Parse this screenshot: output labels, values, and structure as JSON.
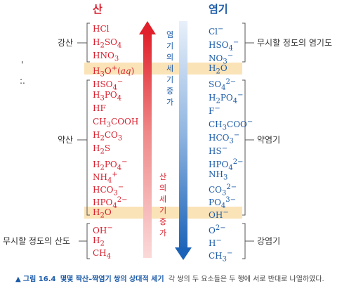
{
  "headers": {
    "acid": "산",
    "base": "염기"
  },
  "acids": [
    "HCl",
    "H2SO4",
    "HNO3",
    "H3O+(aq)",
    "HSO4−",
    "H3PO4",
    "HF",
    "CH3COOH",
    "H2CO3",
    "H2S",
    "H2PO4−",
    "NH4+",
    "HCO3−",
    "HPO42−",
    "H2O",
    "OH−",
    "H2",
    "CH4"
  ],
  "bases": [
    "Cl−",
    "HSO4−",
    "NO3−",
    "H2O",
    "SO42−",
    "H2PO4−",
    "F−",
    "CH3COO−",
    "HCO3−",
    "HS−",
    "HPO42−",
    "NH3",
    "CO32−",
    "PO43−",
    "OH−",
    "O2−",
    "H−",
    "CH3−"
  ],
  "arrows": {
    "acid_label": [
      "산",
      "의",
      "세",
      "기",
      "증",
      "가"
    ],
    "base_label": [
      "염",
      "기",
      "의",
      "세",
      "기",
      "증",
      "가"
    ]
  },
  "groups": {
    "strong_acid": "강산",
    "weak_acid": "약산",
    "negligible_acid": "무시할 정도의 산도",
    "negligible_base": "무시할 정도의 염기도",
    "weak_base": "약염기",
    "strong_base": "강염기"
  },
  "caption": {
    "marker": "▲",
    "figure": "그림 16.4",
    "title": "몇몇 짝산–짝염기 쌍의 상대적 세기",
    "text": "각 쌍의 두 요소들은 두 행에 서로 반대로 나열하였다."
  },
  "stray_marks": [
    "'",
    ":."
  ],
  "colors": {
    "acid": "#d81e2c",
    "base": "#1a5aa8",
    "highlight": "#fbe3b8"
  }
}
